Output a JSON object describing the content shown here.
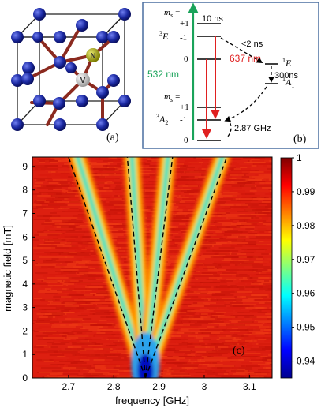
{
  "panel_a": {
    "label": "(a)",
    "atom_n": "N",
    "atom_v": "V",
    "colors": {
      "carbon": "#1c2aa3",
      "nitrogen": "#9a9a00",
      "vacancy": "#c9c9c9",
      "bond": "#8b2a1f"
    }
  },
  "panel_b": {
    "label": "(b)",
    "ms_upper": "m",
    "ms_sub": "s",
    "eq": "=",
    "plus1_upper": "+1",
    "minus1_upper": "-1",
    "zero_upper": "0",
    "plus1_lower": "+1",
    "minus1_lower": "-1",
    "zero_lower": "0",
    "state_3E_sup": "3",
    "state_3E": "E",
    "state_3A2_sup": "3",
    "state_3A2": "A",
    "state_3A2_sub": "2",
    "state_1E_sup": "1",
    "state_1E": "E",
    "state_1A1_sup": "1",
    "state_1A1": "A",
    "state_1A1_sub": "1",
    "t_10ns": "10 ns",
    "t_2ns": "<2 ns",
    "t_300ns": "300ns",
    "wl_532": "532 nm",
    "wl_637": "637 nm",
    "freq": "2.87 GHz",
    "colors": {
      "green": "#1aa35a",
      "red": "#e02020",
      "border": "#4a6fa0"
    }
  },
  "panel_c": {
    "label": "(c)",
    "colorbar_ticks": [
      "1",
      "0.99",
      "0.98",
      "0.97",
      "0.96",
      "0.95",
      "0.94"
    ]
  },
  "chart_data": {
    "type": "heatmap",
    "title": "",
    "xlabel": "frequency [GHz]",
    "ylabel": "magnetic field [mT]",
    "xlim": [
      2.62,
      3.15
    ],
    "ylim": [
      0,
      9.4
    ],
    "x_ticks": [
      "2.7",
      "2.8",
      "2.9",
      "3",
      "3.1"
    ],
    "y_ticks": [
      "0",
      "1",
      "2",
      "3",
      "4",
      "5",
      "6",
      "7",
      "8",
      "9"
    ],
    "colorbar_range": [
      0.935,
      1.0
    ],
    "colormap": "jet",
    "center_frequency": 2.87,
    "dashed_lines": [
      {
        "name": "",
        "points": [
          [
            2.87,
            0
          ],
          [
            2.7,
            9.4
          ]
        ]
      },
      {
        "name": "",
        "points": [
          [
            2.87,
            0
          ],
          [
            2.83,
            9.4
          ]
        ]
      },
      {
        "name": "",
        "points": [
          [
            2.87,
            0
          ],
          [
            2.93,
            9.4
          ]
        ]
      },
      {
        "name": "",
        "points": [
          [
            2.87,
            0
          ],
          [
            3.05,
            9.4
          ]
        ]
      }
    ],
    "resonance_branches": [
      {
        "min_field": 0,
        "min_value": 0.935,
        "points": [
          [
            2.87,
            0
          ],
          [
            2.72,
            9.4
          ]
        ]
      },
      {
        "min_field": 0,
        "min_value": 0.935,
        "points": [
          [
            2.87,
            0
          ],
          [
            2.84,
            9.4
          ]
        ]
      },
      {
        "min_field": 0,
        "min_value": 0.935,
        "points": [
          [
            2.87,
            0
          ],
          [
            2.92,
            9.4
          ]
        ]
      },
      {
        "min_field": 0,
        "min_value": 0.935,
        "points": [
          [
            2.87,
            0
          ],
          [
            3.04,
            9.4
          ]
        ]
      }
    ]
  }
}
